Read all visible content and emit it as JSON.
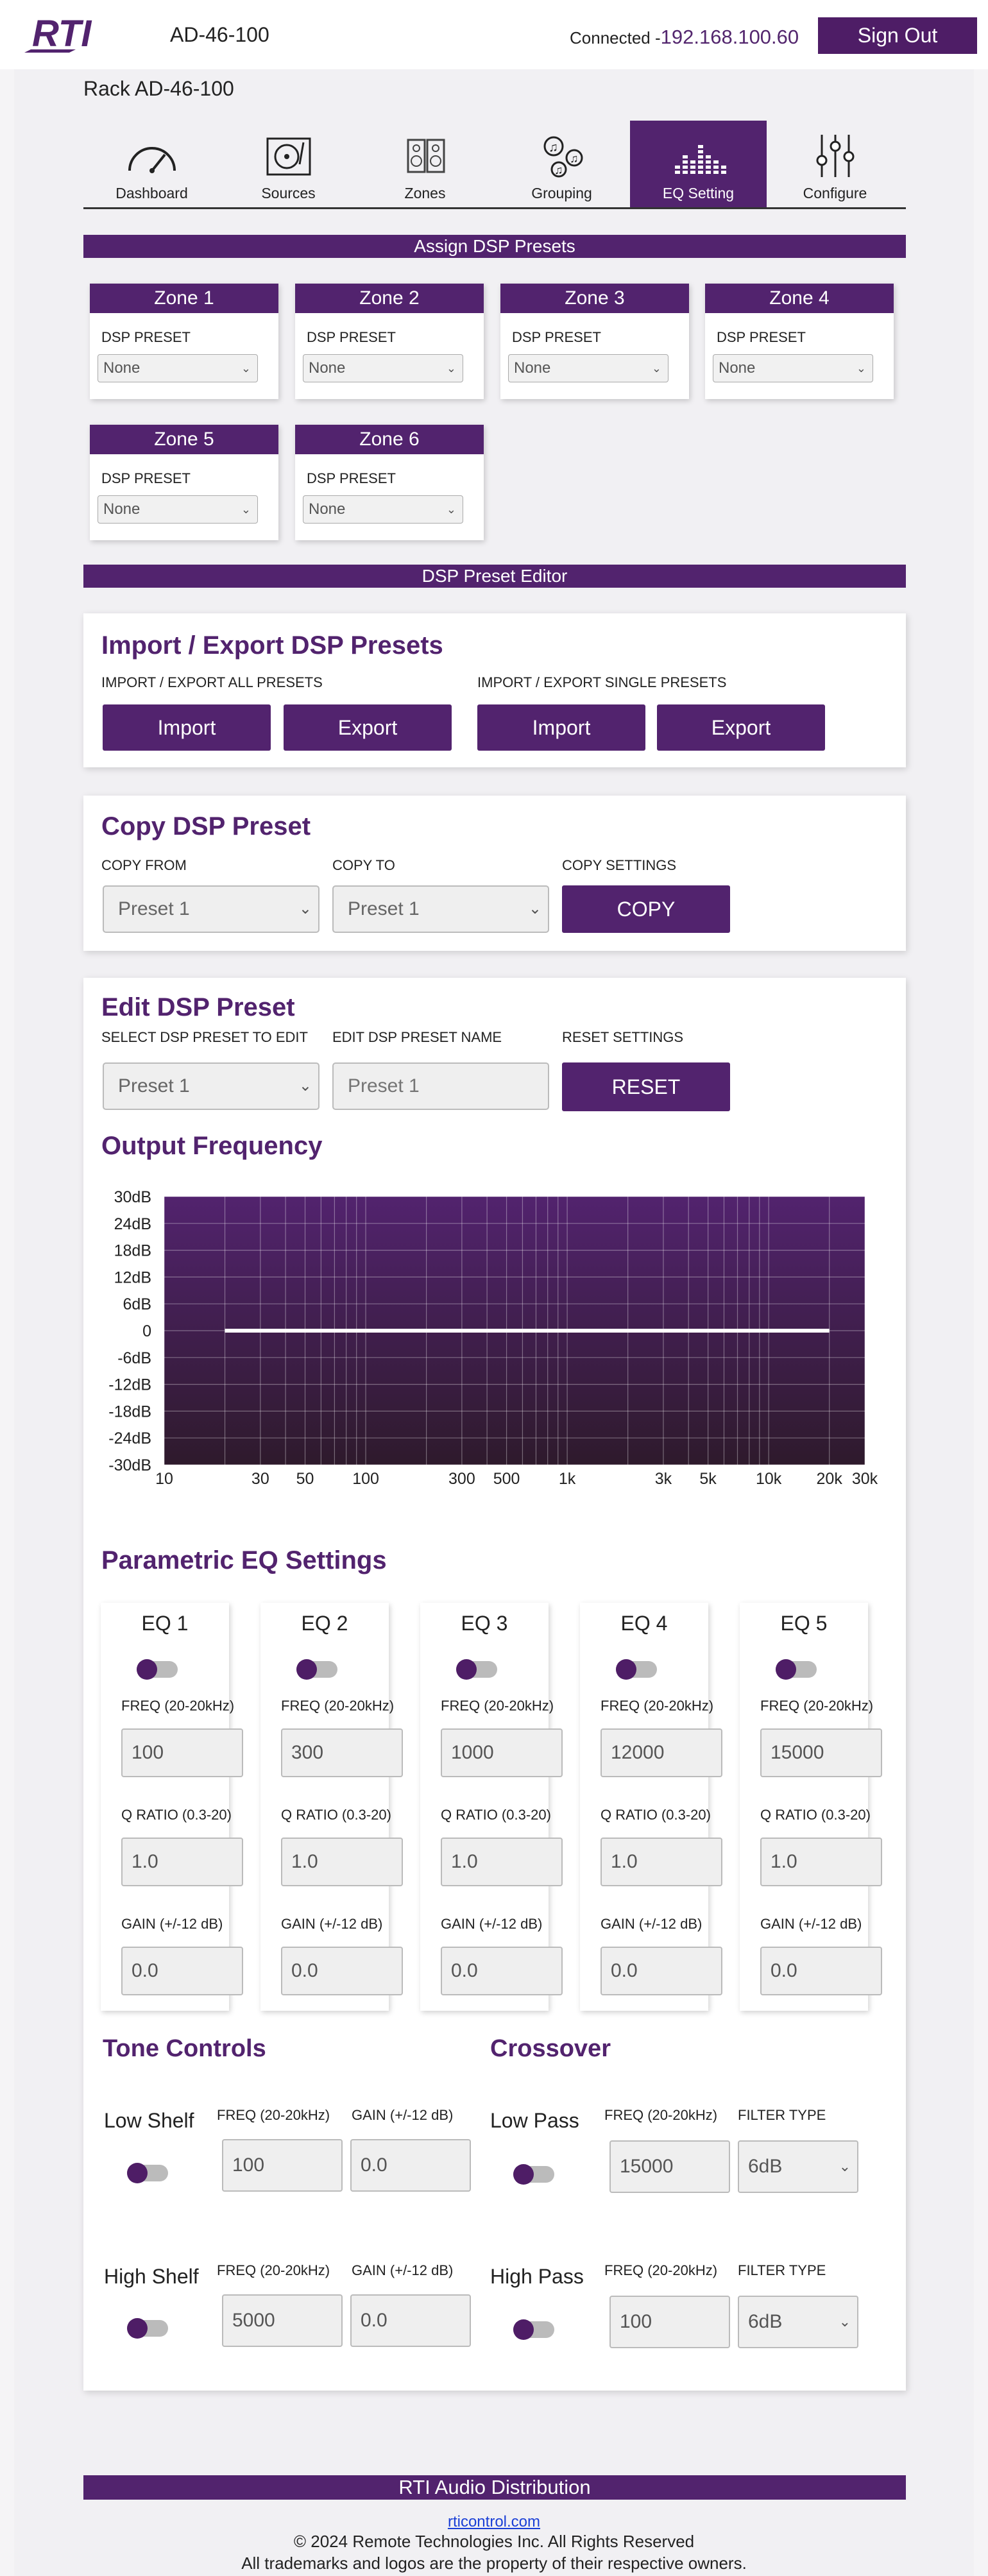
{
  "header": {
    "logo_text": "RTI",
    "device_name": "AD-46-100",
    "connected_label": "Connected -",
    "ip": "192.168.100.60",
    "sign_out_label": "Sign Out"
  },
  "rack_title": "Rack AD-46-100",
  "tabs": [
    {
      "label": "Dashboard",
      "icon": "gauge-icon"
    },
    {
      "label": "Sources",
      "icon": "turntable-icon"
    },
    {
      "label": "Zones",
      "icon": "speakers-icon"
    },
    {
      "label": "Grouping",
      "icon": "music-notes-icon"
    },
    {
      "label": "EQ Setting",
      "icon": "equalizer-icon",
      "active": true
    },
    {
      "label": "Configure",
      "icon": "sliders-icon"
    }
  ],
  "assign": {
    "title": "Assign DSP Presets",
    "zones": [
      {
        "name": "Zone 1",
        "label": "DSP PRESET",
        "value": "None"
      },
      {
        "name": "Zone 2",
        "label": "DSP PRESET",
        "value": "None"
      },
      {
        "name": "Zone 3",
        "label": "DSP PRESET",
        "value": "None"
      },
      {
        "name": "Zone 4",
        "label": "DSP PRESET",
        "value": "None"
      },
      {
        "name": "Zone 5",
        "label": "DSP PRESET",
        "value": "None"
      },
      {
        "name": "Zone 6",
        "label": "DSP PRESET",
        "value": "None"
      }
    ]
  },
  "editor_title": "DSP Preset Editor",
  "import_export": {
    "title": "Import / Export DSP Presets",
    "all_label": "IMPORT / EXPORT ALL PRESETS",
    "single_label": "IMPORT / EXPORT SINGLE PRESETS",
    "import_label": "Import",
    "export_label": "Export"
  },
  "copy": {
    "title": "Copy DSP Preset",
    "from_label": "COPY FROM",
    "to_label": "COPY TO",
    "settings_label": "COPY SETTINGS",
    "from_value": "Preset 1",
    "to_value": "Preset 1",
    "button": "COPY"
  },
  "edit": {
    "title": "Edit DSP Preset",
    "select_label": "SELECT DSP PRESET TO EDIT",
    "name_label": "EDIT DSP PRESET NAME",
    "reset_label": "RESET SETTINGS",
    "select_value": "Preset 1",
    "name_placeholder": "Preset 1",
    "reset_button": "RESET"
  },
  "output_title": "Output Frequency",
  "chart_data": {
    "type": "line",
    "title": "",
    "xlabel": "",
    "ylabel": "",
    "x_scale": "log",
    "x_ticks": [
      "10",
      "30",
      "50",
      "100",
      "300",
      "500",
      "1k",
      "3k",
      "5k",
      "10k",
      "20k",
      "30k"
    ],
    "y_ticks": [
      "30dB",
      "24dB",
      "18dB",
      "12dB",
      "6dB",
      "0",
      "-6dB",
      "-12dB",
      "-18dB",
      "-24dB",
      "-30dB"
    ],
    "xlim": [
      10,
      30000
    ],
    "ylim": [
      -30,
      30
    ],
    "grid": true,
    "series": [
      {
        "x": [
          20,
          20000
        ],
        "values": [
          0,
          0
        ],
        "color": "#ffffff"
      }
    ],
    "background": "#52236e"
  },
  "parametric": {
    "title": "Parametric EQ Settings",
    "freq_label": "FREQ (20-20kHz)",
    "q_label": "Q RATIO (0.3-20)",
    "gain_label": "GAIN (+/-12 dB)",
    "bands": [
      {
        "name": "EQ 1",
        "freq": "100",
        "q": "1.0",
        "gain": "0.0"
      },
      {
        "name": "EQ 2",
        "freq": "300",
        "q": "1.0",
        "gain": "0.0"
      },
      {
        "name": "EQ 3",
        "freq": "1000",
        "q": "1.0",
        "gain": "0.0"
      },
      {
        "name": "EQ 4",
        "freq": "12000",
        "q": "1.0",
        "gain": "0.0"
      },
      {
        "name": "EQ 5",
        "freq": "15000",
        "q": "1.0",
        "gain": "0.0"
      }
    ]
  },
  "tone": {
    "title": "Tone Controls",
    "freq_label": "FREQ (20-20kHz)",
    "gain_label": "GAIN (+/-12 dB)",
    "low_shelf": {
      "name": "Low Shelf",
      "freq": "100",
      "gain": "0.0"
    },
    "high_shelf": {
      "name": "High Shelf",
      "freq": "5000",
      "gain": "0.0"
    }
  },
  "crossover": {
    "title": "Crossover",
    "freq_label": "FREQ (20-20kHz)",
    "filter_label": "FILTER TYPE",
    "low_pass": {
      "name": "Low Pass",
      "freq": "15000",
      "filter": "6dB"
    },
    "high_pass": {
      "name": "High Pass",
      "freq": "100",
      "filter": "6dB"
    }
  },
  "footer": {
    "title": "RTI Audio Distribution",
    "link": "rticontrol.com",
    "copyright": "© 2024 Remote Technologies Inc. All Rights Reserved",
    "trademark": "All trademarks and logos are the property of their respective owners."
  },
  "colors": {
    "accent": "#52236e",
    "ip_text": "#53266e"
  }
}
